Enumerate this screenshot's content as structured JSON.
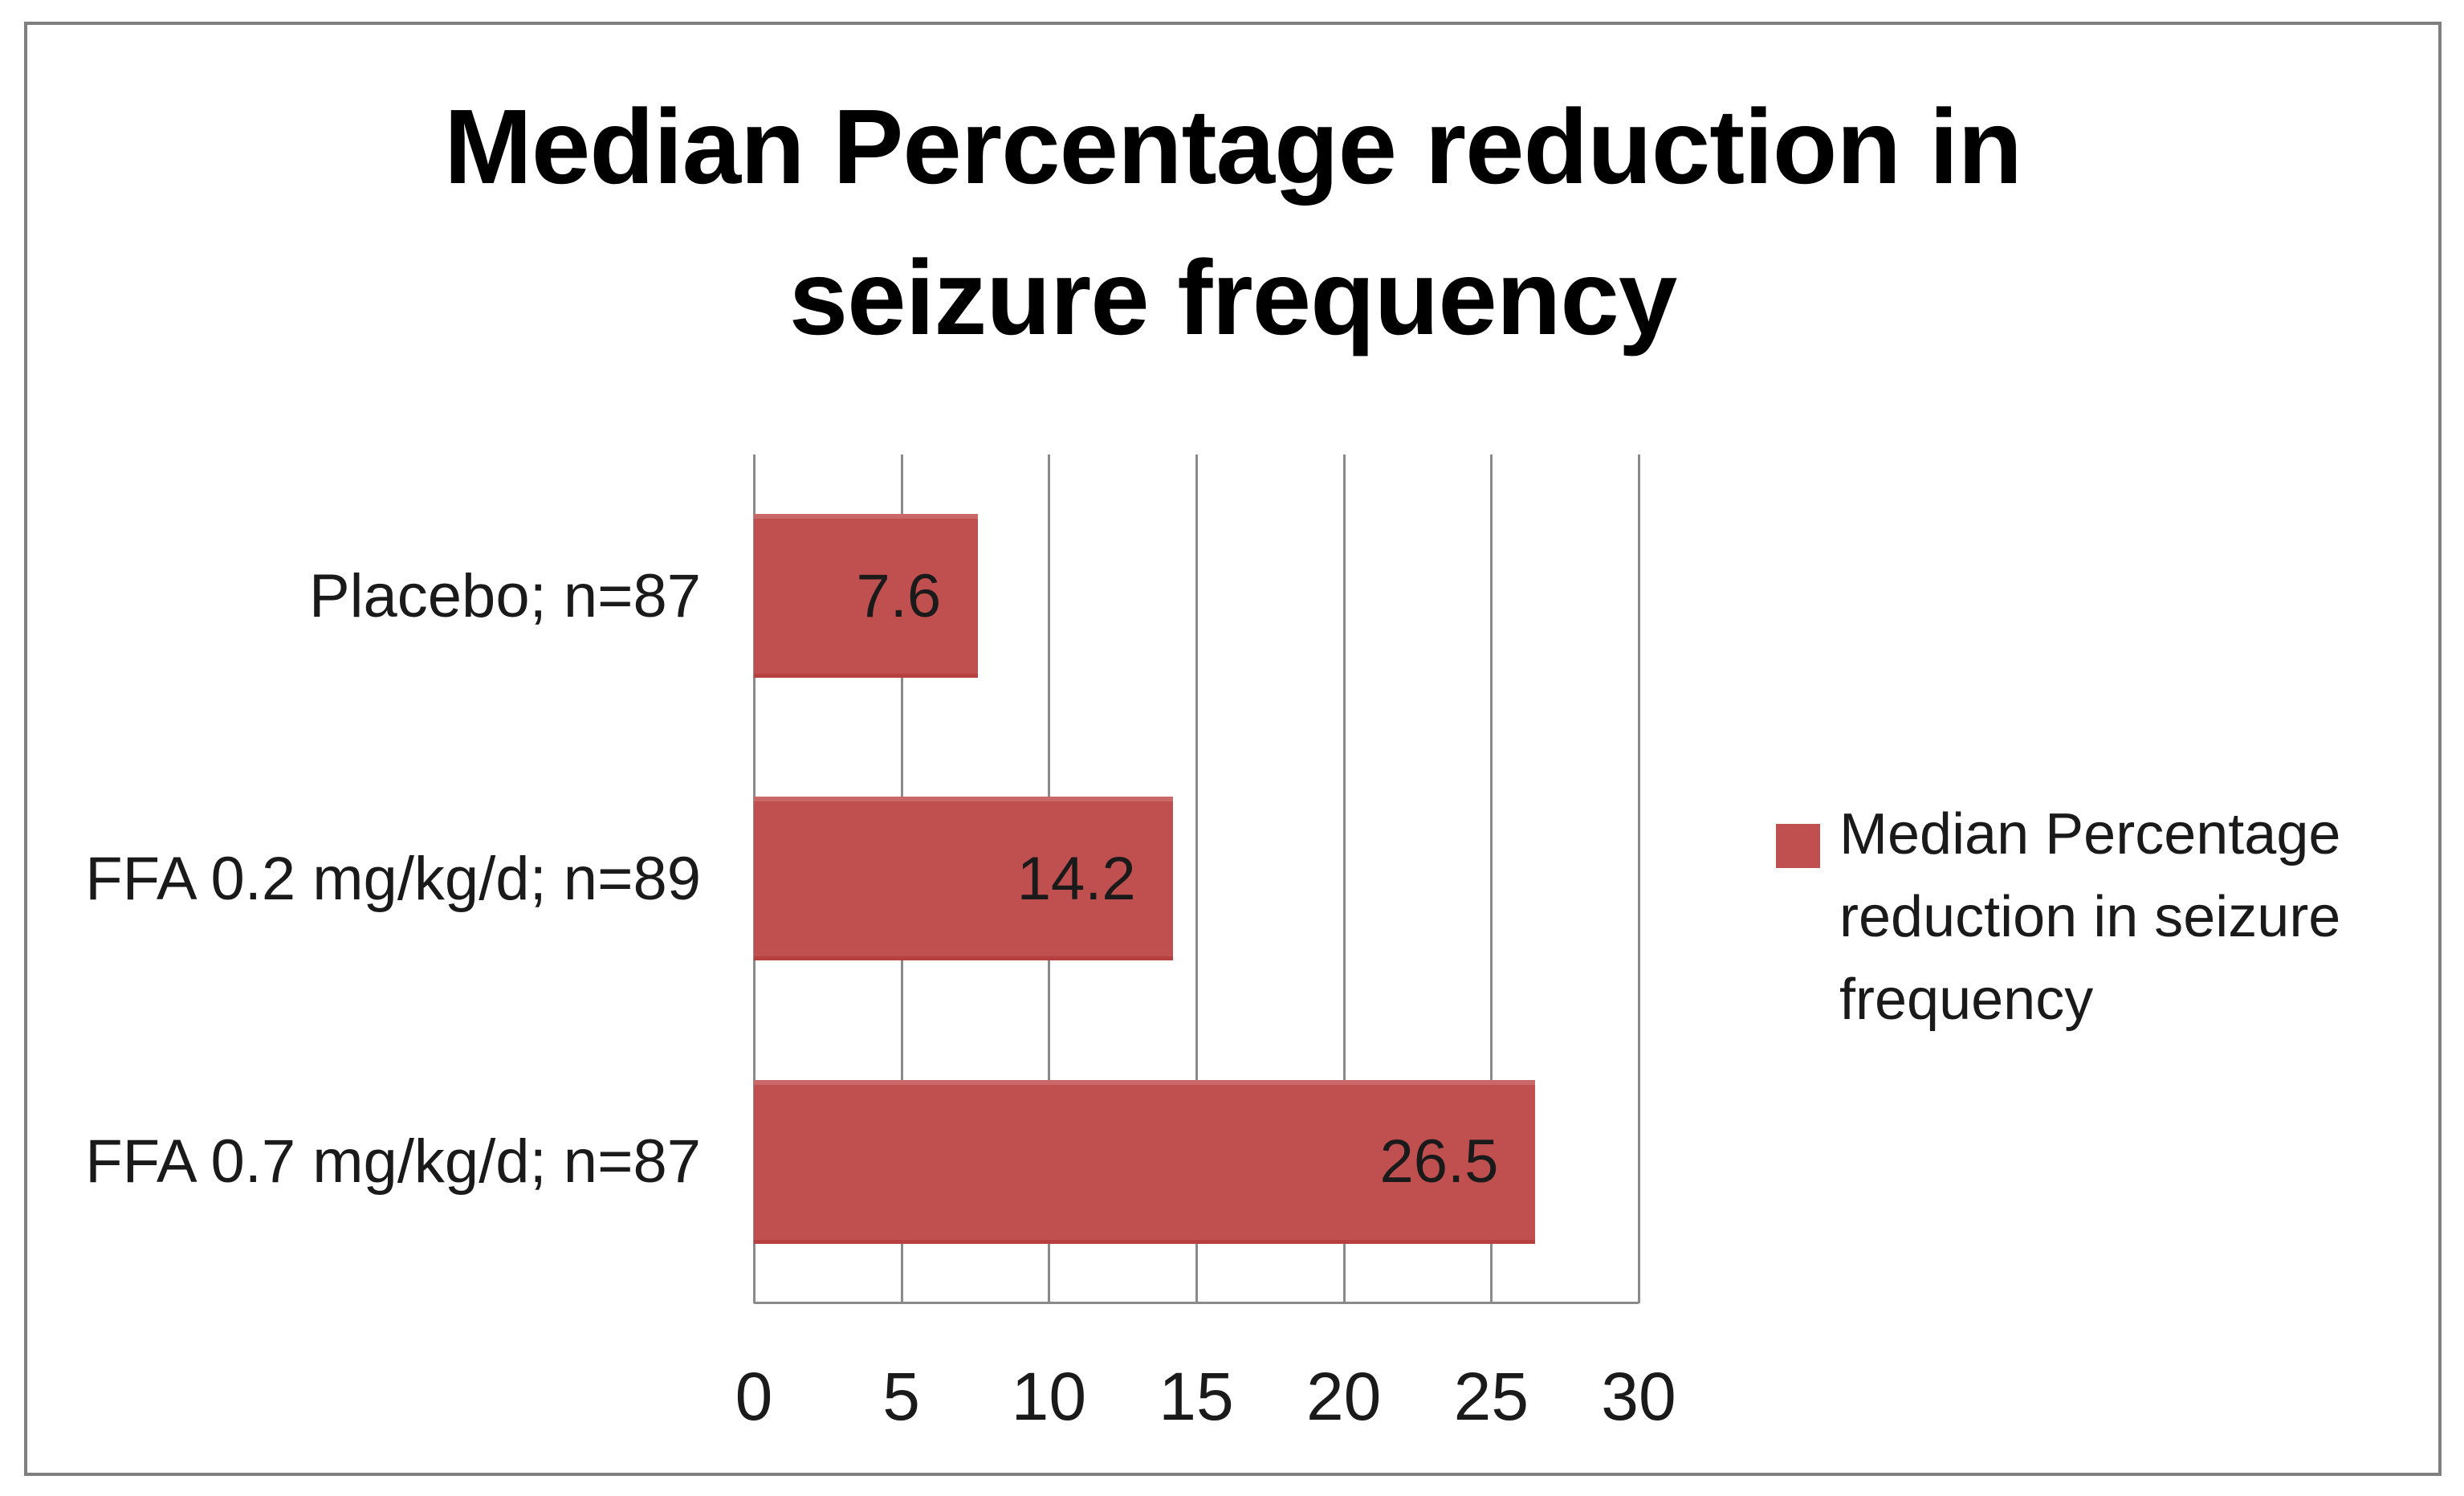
{
  "chart_data": {
    "type": "bar",
    "orientation": "horizontal",
    "title": "Median Percentage reduction in seizure frequency",
    "categories": [
      "Placebo; n=87",
      "FFA 0.2 mg/kg/d; n=89",
      "FFA 0.7 mg/kg/d; n=87"
    ],
    "series": [
      {
        "name": "Median Percentage reduction in seizure frequency",
        "values": [
          7.6,
          14.2,
          26.5
        ],
        "color": "#c0504f"
      }
    ],
    "data_labels": [
      "7.6",
      "14.2",
      "26.5"
    ],
    "x_ticks": [
      "0",
      "5",
      "10",
      "15",
      "20",
      "25",
      "30"
    ],
    "xlim": [
      0,
      30
    ],
    "grid": "vertical-major",
    "legend_position": "right",
    "data_labels_shown": true
  },
  "colors": {
    "bar": "#c0504f",
    "gridline": "#8a8a8a",
    "axis_line": "#8a8a8a",
    "figure_border": "#7f7f7f",
    "text": "#1a1a1a",
    "title_text": "#000000",
    "background": "#ffffff"
  }
}
